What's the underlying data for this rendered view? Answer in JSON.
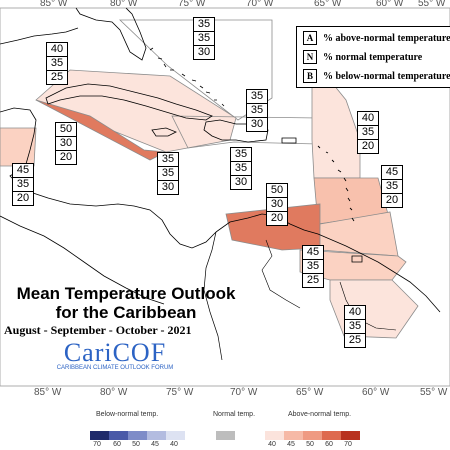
{
  "map": {
    "title_line1": "Mean Temperature Outlook",
    "title_line2": "for the Caribbean",
    "subtitle": "August - September - October - 2021",
    "top_ticks": [
      "85° W",
      "80° W",
      "75° W",
      "70° W",
      "65° W",
      "60° W",
      "55° W"
    ],
    "bottom_ticks": [
      "85° W",
      "80° W",
      "75° W",
      "70° W",
      "65° W",
      "60° W",
      "55° W"
    ]
  },
  "logo": {
    "name": "CariCOF",
    "tagline": "CARIBBEAN CLIMATE OUTLOOK FORUM"
  },
  "key": {
    "rows": [
      {
        "code": "A",
        "text": "% above-normal temperature"
      },
      {
        "code": "N",
        "text": "% normal temperature"
      },
      {
        "code": "B",
        "text": "% below-normal temperature"
      }
    ]
  },
  "probability_boxes": [
    {
      "id": "bahamas",
      "values": [
        "35",
        "35",
        "30"
      ]
    },
    {
      "id": "cuba-west",
      "values": [
        "40",
        "35",
        "25"
      ]
    },
    {
      "id": "belize",
      "values": [
        "50",
        "30",
        "20"
      ]
    },
    {
      "id": "yucatan",
      "values": [
        "45",
        "35",
        "20"
      ]
    },
    {
      "id": "jamaica",
      "values": [
        "35",
        "35",
        "30"
      ]
    },
    {
      "id": "turks-caicos",
      "values": [
        "35",
        "35",
        "30"
      ]
    },
    {
      "id": "haiti",
      "values": [
        "35",
        "35",
        "30"
      ]
    },
    {
      "id": "leeward",
      "values": [
        "40",
        "35",
        "20"
      ]
    },
    {
      "id": "windward",
      "values": [
        "45",
        "35",
        "20"
      ]
    },
    {
      "id": "aruba",
      "values": [
        "50",
        "30",
        "20"
      ]
    },
    {
      "id": "trinidad",
      "values": [
        "45",
        "35",
        "25"
      ]
    },
    {
      "id": "guianas",
      "values": [
        "40",
        "35",
        "25"
      ]
    }
  ],
  "colorbar": {
    "below_label": "Below-normal temp.",
    "normal_label": "Normal temp.",
    "above_label": "Above-normal temp.",
    "below_ticks": [
      "70",
      "60",
      "50",
      "45",
      "40"
    ],
    "above_ticks": [
      "40",
      "45",
      "50",
      "60",
      "70"
    ],
    "below_colors": [
      "#1f2b6b",
      "#4a5aa8",
      "#7e8cc8",
      "#b3bce0",
      "#dde2f2"
    ],
    "normal_color": "#bdbdbd",
    "above_colors": [
      "#fbe3dc",
      "#f6b9a6",
      "#ef9a82",
      "#de6a4f",
      "#b8321f"
    ]
  },
  "colors": {
    "coast": "#000000",
    "region_border": "#8c8c8c",
    "prob40": "#fce4dc",
    "prob45": "#f8c1ad",
    "prob50": "#e07a5f"
  }
}
